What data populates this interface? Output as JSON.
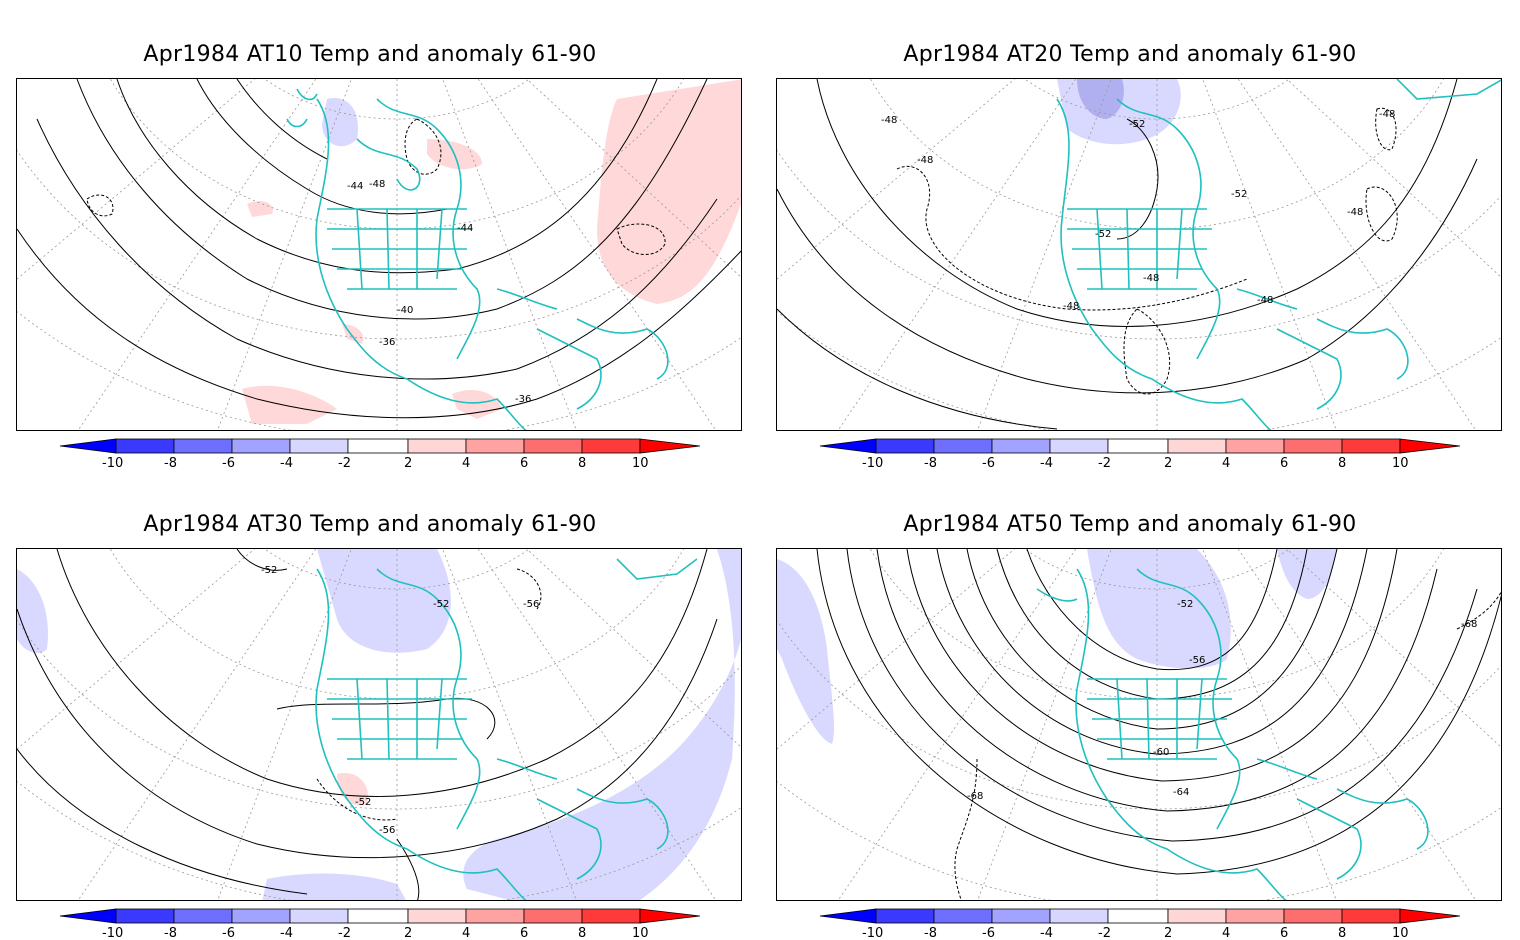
{
  "panels": [
    {
      "id": "at10",
      "title": "Apr1984 AT10 Temp and anomaly 61-90",
      "contour_labels": [
        "-44",
        "-48",
        "-44",
        "-40",
        "-36",
        "-36"
      ],
      "anomaly_patches": [
        {
          "sign": "positive",
          "level": 2
        },
        {
          "sign": "negative",
          "level": -2
        }
      ]
    },
    {
      "id": "at20",
      "title": "Apr1984 AT20 Temp and anomaly 61-90",
      "contour_labels": [
        "-48",
        "-48",
        "-52",
        "-52",
        "-52",
        "-48",
        "-48",
        "-48",
        "-48",
        "-48"
      ],
      "anomaly_patches": [
        {
          "sign": "negative",
          "level": -2
        },
        {
          "sign": "negative",
          "level": -4
        }
      ]
    },
    {
      "id": "at30",
      "title": "Apr1984 AT30 Temp and anomaly 61-90",
      "contour_labels": [
        "-52",
        "-52",
        "-56",
        "-52",
        "-56"
      ],
      "anomaly_patches": [
        {
          "sign": "negative",
          "level": -2
        },
        {
          "sign": "positive",
          "level": 2
        }
      ]
    },
    {
      "id": "at50",
      "title": "Apr1984 AT50 Temp and anomaly 61-90",
      "contour_labels": [
        "-52",
        "-56",
        "-60",
        "-64",
        "-68",
        "-68"
      ],
      "anomaly_patches": [
        {
          "sign": "negative",
          "level": -2
        }
      ]
    }
  ],
  "colorbar": {
    "tick_labels": [
      "-10",
      "-8",
      "-6",
      "-4",
      "-2",
      "2",
      "4",
      "6",
      "8",
      "10"
    ],
    "colors": [
      "#0000ff",
      "#3a3aff",
      "#6e6eff",
      "#a2a2ff",
      "#d6d6ff",
      "#ffffff",
      "#ffd6d6",
      "#ffa2a2",
      "#ff6e6e",
      "#ff3a3a",
      "#ff0000"
    ]
  },
  "map_colors": {
    "coastline": "#20c0c0",
    "positive_anomaly": "#ffd9d9",
    "negative_anomaly": "#d9d9ff",
    "negative_anomaly_strong": "#b0b0f0"
  }
}
